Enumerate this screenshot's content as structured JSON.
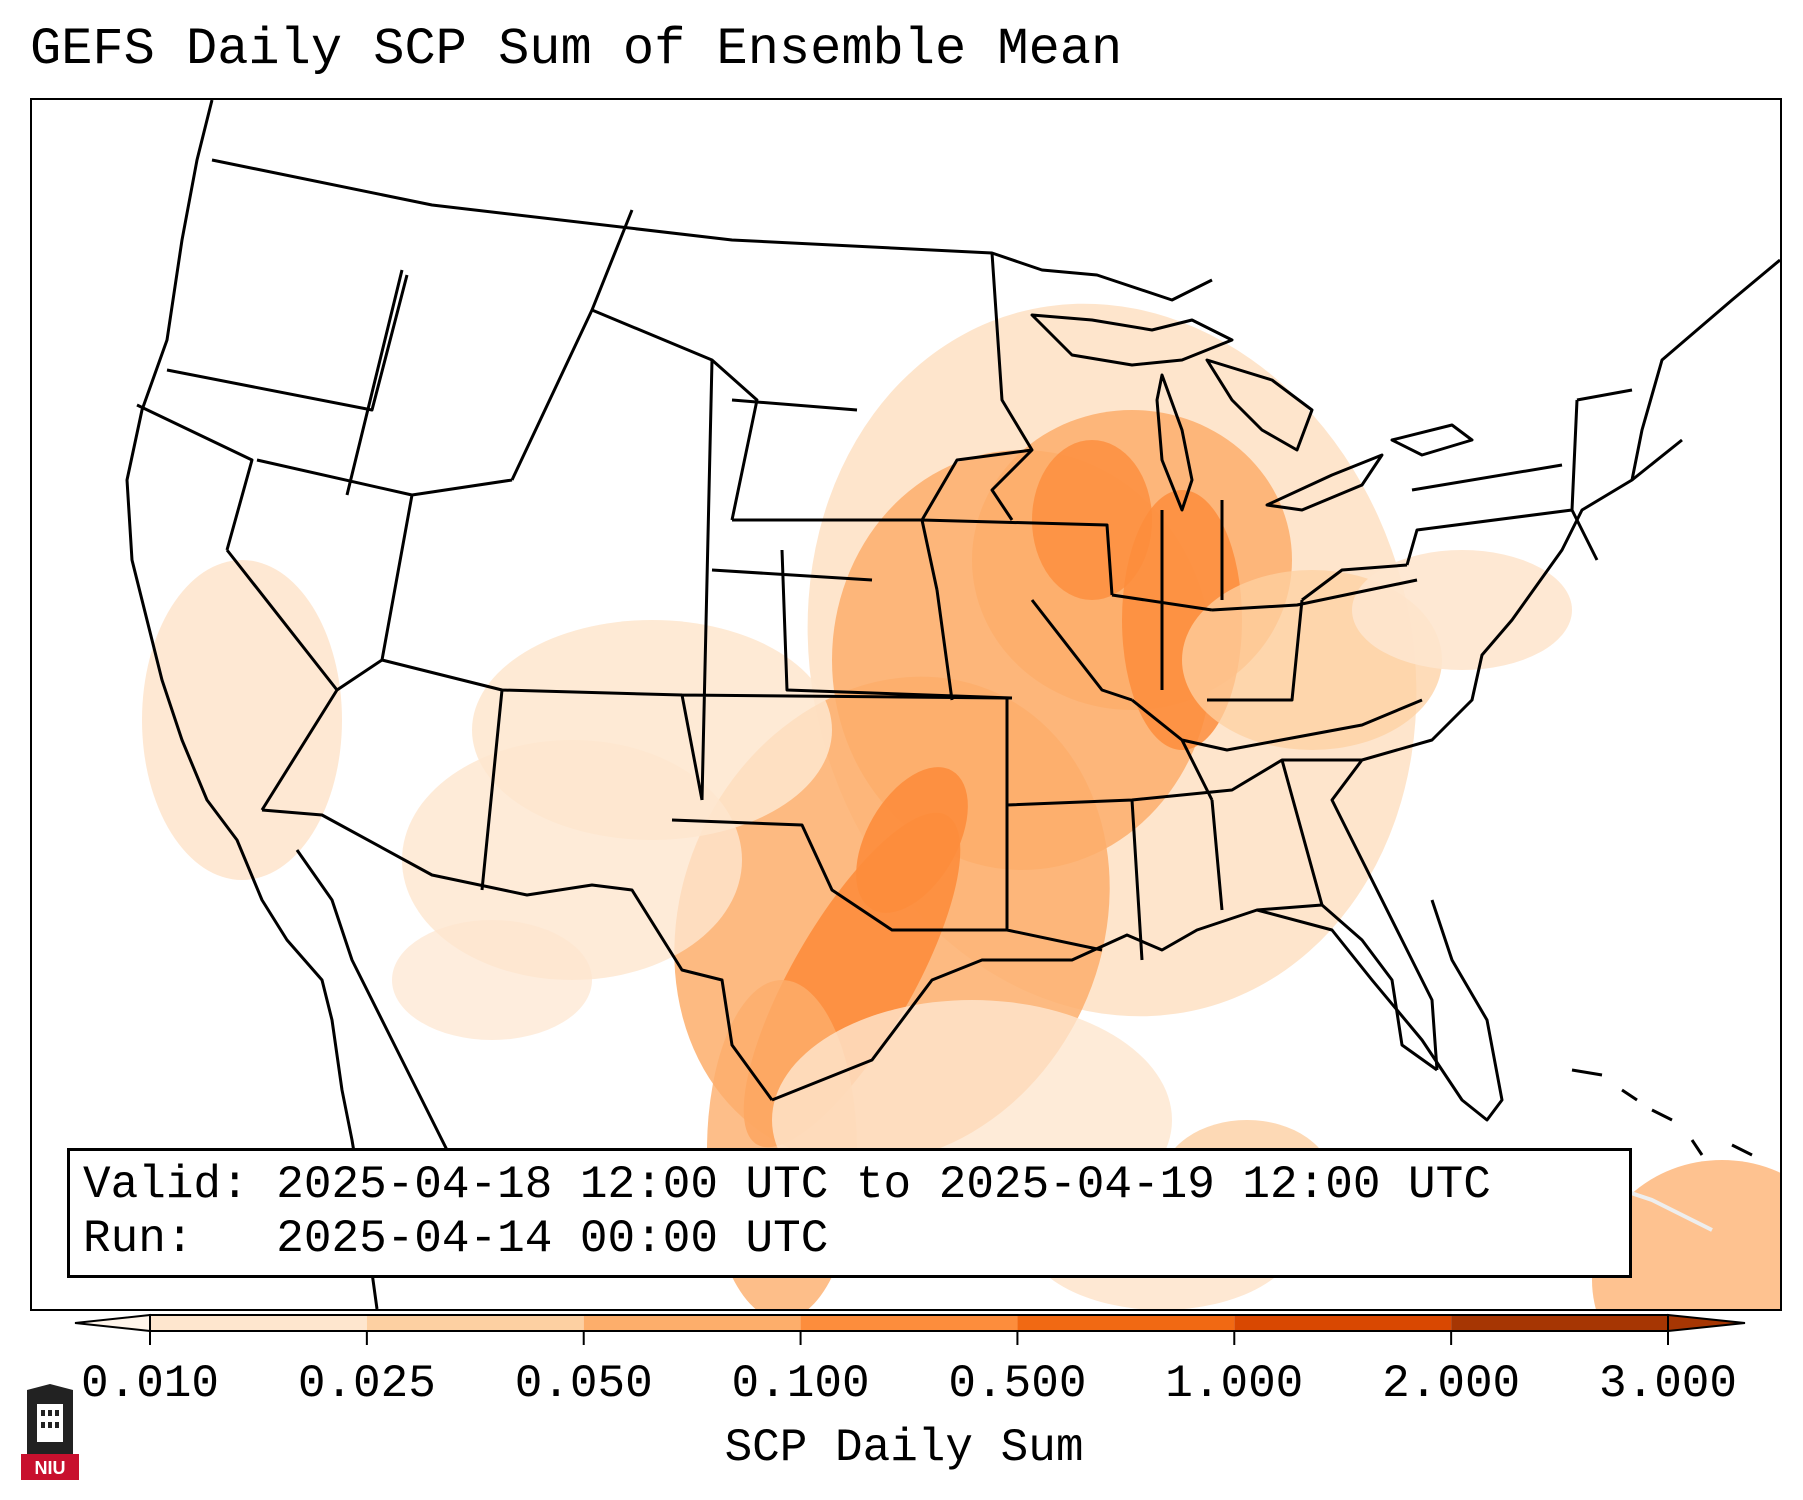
{
  "title": "GEFS Daily SCP Sum of Ensemble Mean",
  "info": {
    "valid_label": "Valid:",
    "valid_value": "2025-04-18 12:00 UTC to 2025-04-19 12:00 UTC",
    "run_label": "Run:",
    "run_value": "2025-04-14 00:00 UTC"
  },
  "colorbar": {
    "label": "SCP Daily Sum",
    "ticks": [
      "0.010",
      "0.025",
      "0.050",
      "0.100",
      "0.500",
      "1.000",
      "2.000",
      "3.000"
    ],
    "colors": [
      "#fff5eb",
      "#fee6ce",
      "#fdd0a2",
      "#fdae6b",
      "#fd8d3c",
      "#f16913",
      "#d94801",
      "#a63603"
    ],
    "extend": "both"
  },
  "logo": {
    "text": "NIU",
    "colors": {
      "dark": "#222222",
      "accent": "#c8102e"
    }
  },
  "map": {
    "region": "Continental United States",
    "highlight_color": "#f16913"
  }
}
